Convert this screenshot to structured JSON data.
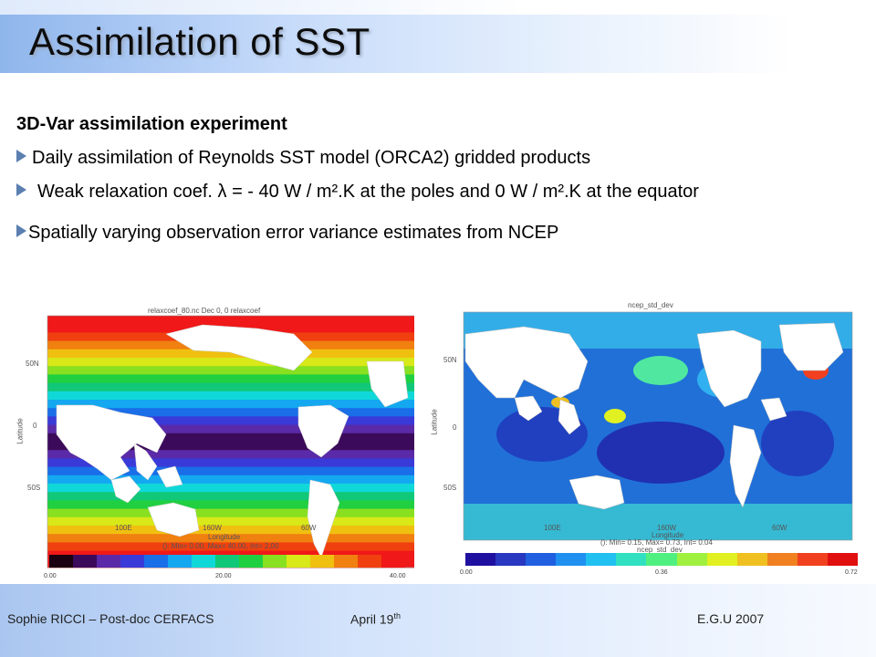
{
  "slide": {
    "title": "Assimilation of SST",
    "heading": "3D-Var assimilation experiment",
    "bullets": [
      "Daily assimilation of Reynolds SST model (ORCA2) gridded products",
      "Weak relaxation coef.  λ = - 40 W / m².K  at the poles and 0 W / m².K  at the equator",
      "Spatially varying observation error variance estimates from NCEP"
    ]
  },
  "left_map": {
    "header": "relaxcoef_80.nc   Dec 0, 0    relaxcoef",
    "lat_labels": [
      "50N",
      "0",
      "50S"
    ],
    "lon_labels": [
      "100E",
      "160W",
      "60W"
    ],
    "ylabel": "Latitude",
    "xlabel": "Longitude",
    "stats": "(): Min= 0.00, Max= 40.00, Int= 2.00",
    "colorbar_ticks": [
      "0.00",
      "20.00",
      "40.00"
    ]
  },
  "right_map": {
    "header": "ncep_std_dev",
    "lat_labels": [
      "50N",
      "0",
      "50S"
    ],
    "lon_labels": [
      "100E",
      "160W",
      "60W"
    ],
    "ylabel": "Latitude",
    "xlabel": "Longitude",
    "stats": "(): Min= 0.15, Max= 0.73, Int= 0.04",
    "colorbar_title": "ncep_std_dev",
    "colorbar_ticks": [
      "0.00",
      "0.36",
      "0.72"
    ]
  },
  "footer": {
    "author": "Sophie RICCI – Post-doc CERFACS",
    "date_main": "April 19",
    "date_sup": "th",
    "event": "E.G.U 2007"
  },
  "colors": {
    "title_gradient_start": "#8fb6ec",
    "bullet_arrow": "#5a7fb0",
    "relax_scale": [
      "#1a0010",
      "#3c0a5a",
      "#5a2aa8",
      "#3a3ad8",
      "#1a6ee8",
      "#14a8f0",
      "#10d8d8",
      "#10c878",
      "#20d040",
      "#88e020",
      "#d8e818",
      "#f0c010",
      "#f08010",
      "#f04010",
      "#f01818"
    ],
    "ncep_scale": [
      "#2010a0",
      "#2838c0",
      "#2060e0",
      "#2090f0",
      "#20c0f0",
      "#30e0c0",
      "#50f080",
      "#a0f040",
      "#e0f020",
      "#f0c020",
      "#f08020",
      "#f04020",
      "#e01010"
    ]
  }
}
